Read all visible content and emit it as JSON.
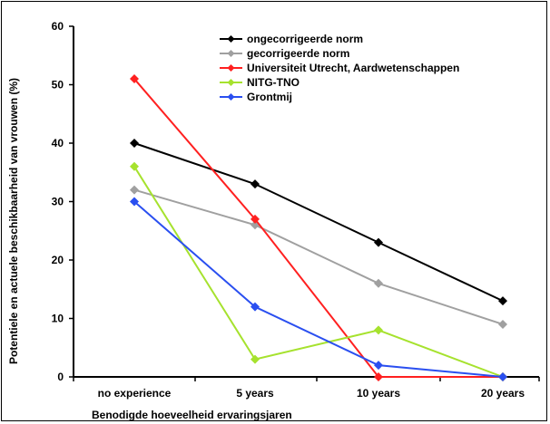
{
  "chart_data": {
    "type": "line",
    "categories": [
      "no experience",
      "5 years",
      "10 years",
      "20 years"
    ],
    "ylabel": "Potentiele en actuele beschikbaarheid van vrouwen (%)",
    "xlabel": "Benodigde hoeveelheid ervaringsjaren",
    "ylim": [
      0,
      60
    ],
    "yticks": [
      0,
      10,
      20,
      30,
      40,
      50,
      60
    ],
    "grid": false,
    "legend_position": "top-right",
    "series": [
      {
        "name": "ongecorrigeerde norm",
        "color": "#000000",
        "values": [
          40,
          33,
          23,
          13
        ]
      },
      {
        "name": "gecorrigeerde norm",
        "color": "#a0a0a0",
        "values": [
          32,
          26,
          16,
          9
        ]
      },
      {
        "name": "Universiteit Utrecht, Aardwetenschappen",
        "color": "#ff2020",
        "values": [
          51,
          27,
          0,
          0
        ]
      },
      {
        "name": "NITG-TNO",
        "color": "#a6e22e",
        "values": [
          36,
          3,
          8,
          0
        ]
      },
      {
        "name": "Grontmij",
        "color": "#2a4ff0",
        "values": [
          30,
          12,
          2,
          0
        ]
      }
    ]
  }
}
